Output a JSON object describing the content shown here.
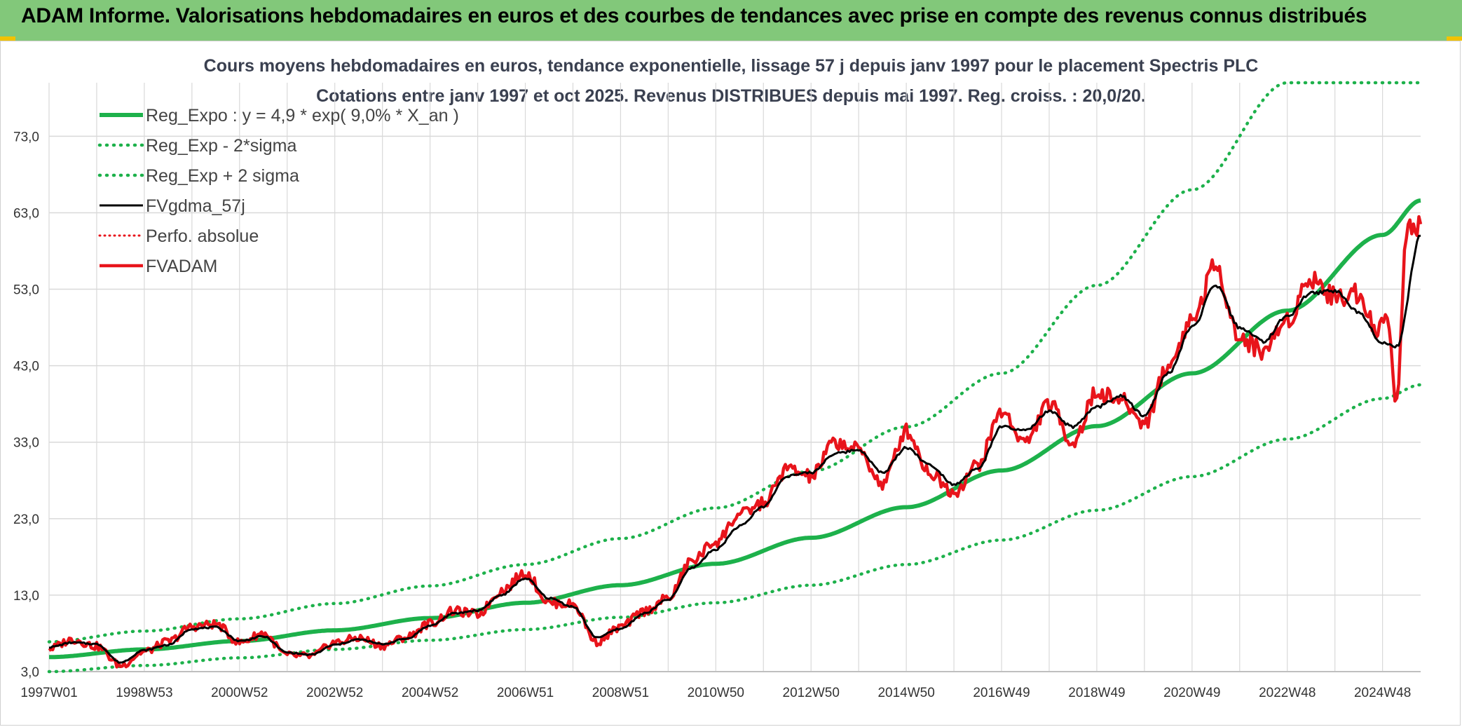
{
  "header": {
    "title": "ADAM Informe. Valorisations hebdomadaires en euros et des courbes de tendances avec prise en compte des revenus connus distribués"
  },
  "colors": {
    "header_bg": "#82c87a",
    "reg_expo": "#1db14b",
    "sigma": "#1db14b",
    "gdma": "#000000",
    "perfo": "#e8141b",
    "fvadam": "#e8141b",
    "grid": "#d9d9d9"
  },
  "chart_data": {
    "type": "line",
    "title": "Cours moyens hebdomadaires en euros, tendance exponentielle, lissage 57 j depuis janv 1997 pour le placement Spectris PLC",
    "subtitle": "Cotations entre janv 1997 et oct 2025. Revenus DISTRIBUES depuis mai 1997. Reg. croiss. : 20,0/20.",
    "xlabel": "",
    "ylabel": "",
    "x_range": [
      1997.0,
      2025.8
    ],
    "ylim": [
      3.0,
      80.0
    ],
    "y_ticks": [
      3.0,
      13.0,
      23.0,
      33.0,
      43.0,
      53.0,
      63.0,
      73.0
    ],
    "y_tick_labels": [
      "3,0",
      "13,0",
      "23,0",
      "33,0",
      "43,0",
      "53,0",
      "63,0",
      "73,0"
    ],
    "x_tick_labels": [
      "1997W01",
      "1998W53",
      "2000W52",
      "2002W52",
      "2004W52",
      "2006W51",
      "2008W51",
      "2010W50",
      "2012W50",
      "2014W50",
      "2016W49",
      "2018W49",
      "2020W49",
      "2022W48",
      "2024W48"
    ],
    "x_tick_values": [
      1997.0,
      1999.0,
      2001.0,
      2003.0,
      2005.0,
      2007.0,
      2009.0,
      2011.0,
      2013.0,
      2015.0,
      2017.0,
      2019.0,
      2021.0,
      2023.0,
      2025.0
    ],
    "legend_position": "top-left",
    "series": [
      {
        "name": "Reg_Expo : y = 4,9 * exp( 9,0% *  X_an )",
        "style": "solid-green-thick",
        "x": [
          1997,
          1999,
          2001,
          2003,
          2005,
          2007,
          2009,
          2011,
          2013,
          2015,
          2017,
          2019,
          2021,
          2023,
          2025,
          2025.8
        ],
        "values": [
          4.9,
          5.9,
          7.0,
          8.4,
          10.0,
          12.0,
          14.3,
          17.1,
          20.5,
          24.5,
          29.3,
          35.1,
          42.0,
          50.2,
          60.1,
          64.6
        ]
      },
      {
        "name": "Reg_Exp - 2*sigma",
        "style": "dotted-green",
        "x": [
          1997,
          1999,
          2001,
          2003,
          2005,
          2007,
          2009,
          2011,
          2013,
          2015,
          2017,
          2019,
          2021,
          2023,
          2025,
          2025.8
        ],
        "values": [
          3.0,
          3.8,
          4.8,
          5.9,
          7.1,
          8.5,
          10.1,
          12.0,
          14.3,
          17.0,
          20.2,
          24.1,
          28.5,
          33.4,
          38.7,
          40.5
        ]
      },
      {
        "name": "Reg_Exp + 2 sigma",
        "style": "dotted-green",
        "x": [
          1997,
          1999,
          2001,
          2003,
          2005,
          2007,
          2009,
          2011,
          2013,
          2015,
          2017,
          2019,
          2021,
          2023,
          2025,
          2025.8
        ],
        "values": [
          6.9,
          8.3,
          9.9,
          11.9,
          14.2,
          17.0,
          20.4,
          24.4,
          29.2,
          35.0,
          42.0,
          53.5,
          66.0,
          80.0,
          80.0,
          80.0
        ]
      },
      {
        "name": "FVgdma_57j",
        "style": "solid-black",
        "x": [
          1997,
          1997.5,
          1998,
          1998.5,
          1999,
          1999.5,
          2000,
          2000.5,
          2001,
          2001.5,
          2002,
          2002.5,
          2003,
          2003.5,
          2004,
          2004.5,
          2005,
          2005.5,
          2006,
          2006.5,
          2007,
          2007.5,
          2008,
          2008.5,
          2009,
          2009.5,
          2010,
          2010.5,
          2011,
          2011.5,
          2012,
          2012.5,
          2013,
          2013.5,
          2014,
          2014.5,
          2015,
          2015.5,
          2016,
          2016.5,
          2017,
          2017.5,
          2018,
          2018.5,
          2019,
          2019.5,
          2020,
          2020.5,
          2021,
          2021.5,
          2022,
          2022.5,
          2023,
          2023.5,
          2024,
          2024.5,
          2025,
          2025.3,
          2025.8
        ],
        "values": [
          6.2,
          6.8,
          6.6,
          4.2,
          5.8,
          6.5,
          8.6,
          8.8,
          7.0,
          7.6,
          5.5,
          5.2,
          6.5,
          7.2,
          6.6,
          7.3,
          9.0,
          10.6,
          11.0,
          13.0,
          15.2,
          12.6,
          11.5,
          7.5,
          8.6,
          10.6,
          12.4,
          16.6,
          19.0,
          22.0,
          24.6,
          28.6,
          29.0,
          31.5,
          32.0,
          29.0,
          32.3,
          30.0,
          27.5,
          29.5,
          35.0,
          34.5,
          37.0,
          35.0,
          37.6,
          39.0,
          36.5,
          42.0,
          48.0,
          53.5,
          48.0,
          46.2,
          49.5,
          52.5,
          52.8,
          50.0,
          46.0,
          45.5,
          60.0
        ]
      },
      {
        "name": "Perfo. absolue",
        "style": "dotted-red",
        "x": [],
        "values": []
      },
      {
        "name": "FVADAM",
        "style": "solid-red-thick",
        "x": [
          1997,
          1997.5,
          1998,
          1998.5,
          1999,
          1999.5,
          2000,
          2000.5,
          2001,
          2001.5,
          2002,
          2002.5,
          2003,
          2003.5,
          2004,
          2004.5,
          2005,
          2005.5,
          2006,
          2006.5,
          2007,
          2007.5,
          2008,
          2008.5,
          2009,
          2009.5,
          2010,
          2010.5,
          2011,
          2011.5,
          2012,
          2012.5,
          2013,
          2013.5,
          2014,
          2014.5,
          2015,
          2015.5,
          2016,
          2016.5,
          2017,
          2017.5,
          2018,
          2018.5,
          2019,
          2019.5,
          2020,
          2020.5,
          2021,
          2021.5,
          2022,
          2022.5,
          2023,
          2023.5,
          2024,
          2024.5,
          2024.9,
          2025.1,
          2025.3,
          2025.5,
          2025.8
        ],
        "values": [
          6.0,
          7.2,
          6.3,
          3.8,
          5.6,
          6.9,
          8.9,
          9.2,
          6.8,
          8.0,
          5.1,
          5.0,
          6.8,
          7.4,
          6.4,
          7.5,
          9.3,
          10.9,
          10.5,
          13.6,
          15.9,
          12.0,
          11.8,
          6.9,
          8.8,
          10.9,
          12.6,
          17.5,
          20.0,
          23.5,
          25.0,
          29.5,
          28.5,
          33.0,
          32.0,
          27.5,
          34.5,
          29.0,
          26.5,
          30.0,
          37.0,
          33.0,
          38.0,
          33.0,
          39.5,
          38.5,
          35.5,
          43.0,
          49.0,
          56.0,
          46.5,
          45.0,
          49.0,
          54.5,
          52.0,
          52.5,
          47.5,
          49.5,
          38.0,
          61.0,
          61.5
        ]
      }
    ]
  }
}
